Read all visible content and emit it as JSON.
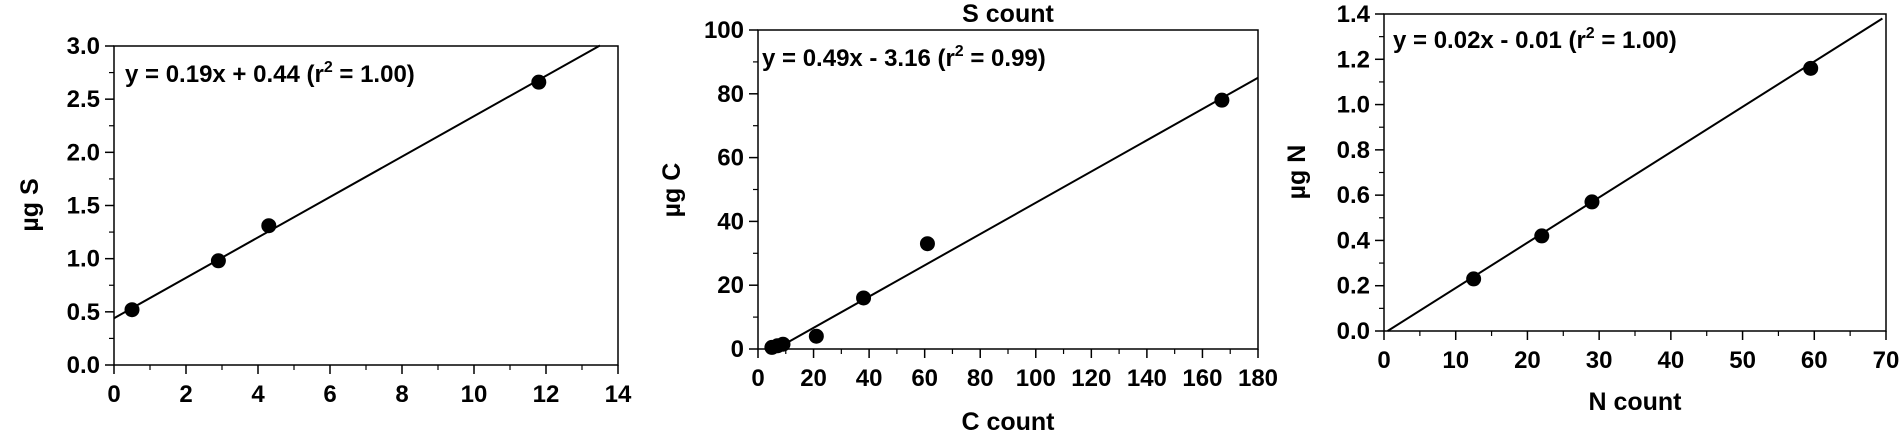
{
  "chart_data": [
    {
      "type": "scatter",
      "title": "",
      "xlabel": "",
      "ylabel": "µg S",
      "xlim": [
        0,
        14
      ],
      "ylim": [
        0,
        3
      ],
      "xticks": [
        "0",
        "2",
        "4",
        "6",
        "8",
        "10",
        "12",
        "14"
      ],
      "yticks": [
        "0.0",
        "0.5",
        "1.0",
        "1.5",
        "2.0",
        "2.5",
        "3.0"
      ],
      "points": [
        [
          0.5,
          0.52
        ],
        [
          2.9,
          0.98
        ],
        [
          4.3,
          1.31
        ],
        [
          11.8,
          2.66
        ]
      ],
      "fit": {
        "slope": 0.19,
        "intercept": 0.44
      },
      "equation": {
        "prefix": "y = 0.19x + 0.44 (r",
        "sup": "2",
        "suffix": " = 1.00)"
      }
    },
    {
      "type": "scatter",
      "title": "S count",
      "xlabel": "C count",
      "ylabel": "µg C",
      "xlim": [
        0,
        180
      ],
      "ylim": [
        0,
        100
      ],
      "xticks": [
        "0",
        "20",
        "40",
        "60",
        "80",
        "100",
        "120",
        "140",
        "160",
        "180"
      ],
      "yticks": [
        "0",
        "20",
        "40",
        "60",
        "80",
        "100"
      ],
      "points": [
        [
          5,
          0.5
        ],
        [
          7,
          1
        ],
        [
          9,
          1.5
        ],
        [
          21,
          4
        ],
        [
          38,
          16
        ],
        [
          61,
          33
        ],
        [
          167,
          78
        ]
      ],
      "fit": {
        "slope": 0.49,
        "intercept": -3.16
      },
      "equation": {
        "prefix": "y = 0.49x - 3.16 (r",
        "sup": "2",
        "suffix": " = 0.99)"
      }
    },
    {
      "type": "scatter",
      "title": "",
      "xlabel": "N count",
      "ylabel": "µg N",
      "xlim": [
        0,
        70
      ],
      "ylim": [
        0,
        1.4
      ],
      "xticks": [
        "0",
        "10",
        "20",
        "30",
        "40",
        "50",
        "60",
        "70"
      ],
      "yticks": [
        "0.0",
        "0.2",
        "0.4",
        "0.6",
        "0.8",
        "1.0",
        "1.2",
        "1.4"
      ],
      "points": [
        [
          12.5,
          0.23
        ],
        [
          22,
          0.42
        ],
        [
          29,
          0.57
        ],
        [
          59.5,
          1.16
        ]
      ],
      "fit": {
        "slope": 0.02,
        "intercept": -0.01
      },
      "equation": {
        "prefix": "y = 0.02x - 0.01 (r",
        "sup": "2",
        "suffix": " = 1.00)"
      }
    }
  ]
}
